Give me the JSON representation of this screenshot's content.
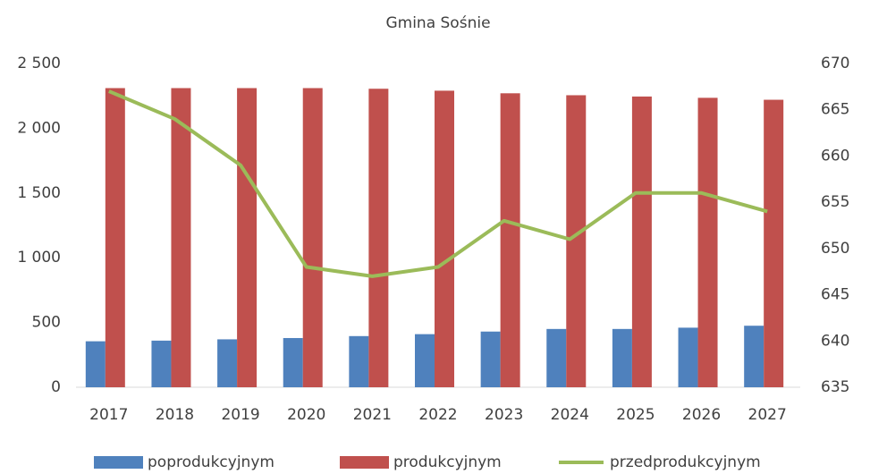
{
  "chart_data": {
    "type": "bar-line",
    "title": "Gmina Sośnie",
    "categories": [
      "2017",
      "2018",
      "2019",
      "2020",
      "2021",
      "2022",
      "2023",
      "2024",
      "2025",
      "2026",
      "2027"
    ],
    "series": [
      {
        "name": "poprodukcyjnym",
        "color": "#4f81bd",
        "type": "bar",
        "values": [
          355,
          360,
          370,
          380,
          395,
          410,
          430,
          450,
          450,
          460,
          475
        ]
      },
      {
        "name": "produkcyjnym",
        "color": "#c0504d",
        "type": "bar",
        "values": [
          2310,
          2310,
          2310,
          2310,
          2305,
          2290,
          2270,
          2255,
          2245,
          2235,
          2220
        ]
      },
      {
        "name": "przedprodukcyjnym",
        "color": "#9bbb59",
        "type": "line",
        "axis": "y2",
        "values": [
          667,
          664,
          659,
          648,
          647,
          648,
          653,
          651,
          656,
          656,
          654
        ]
      }
    ],
    "ylim": [
      0,
      2500
    ],
    "yticks": [
      0,
      500,
      {
        "value": 1000,
        "label": "1 000"
      },
      {
        "value": 1500,
        "label": "1 500"
      },
      {
        "value": 2000,
        "label": "2 000"
      },
      {
        "value": 2500,
        "label": "2 500"
      }
    ],
    "y2lim": [
      635,
      670
    ],
    "y2ticks": [
      635,
      640,
      645,
      650,
      655,
      660,
      665,
      670
    ],
    "legend": "bottom"
  }
}
